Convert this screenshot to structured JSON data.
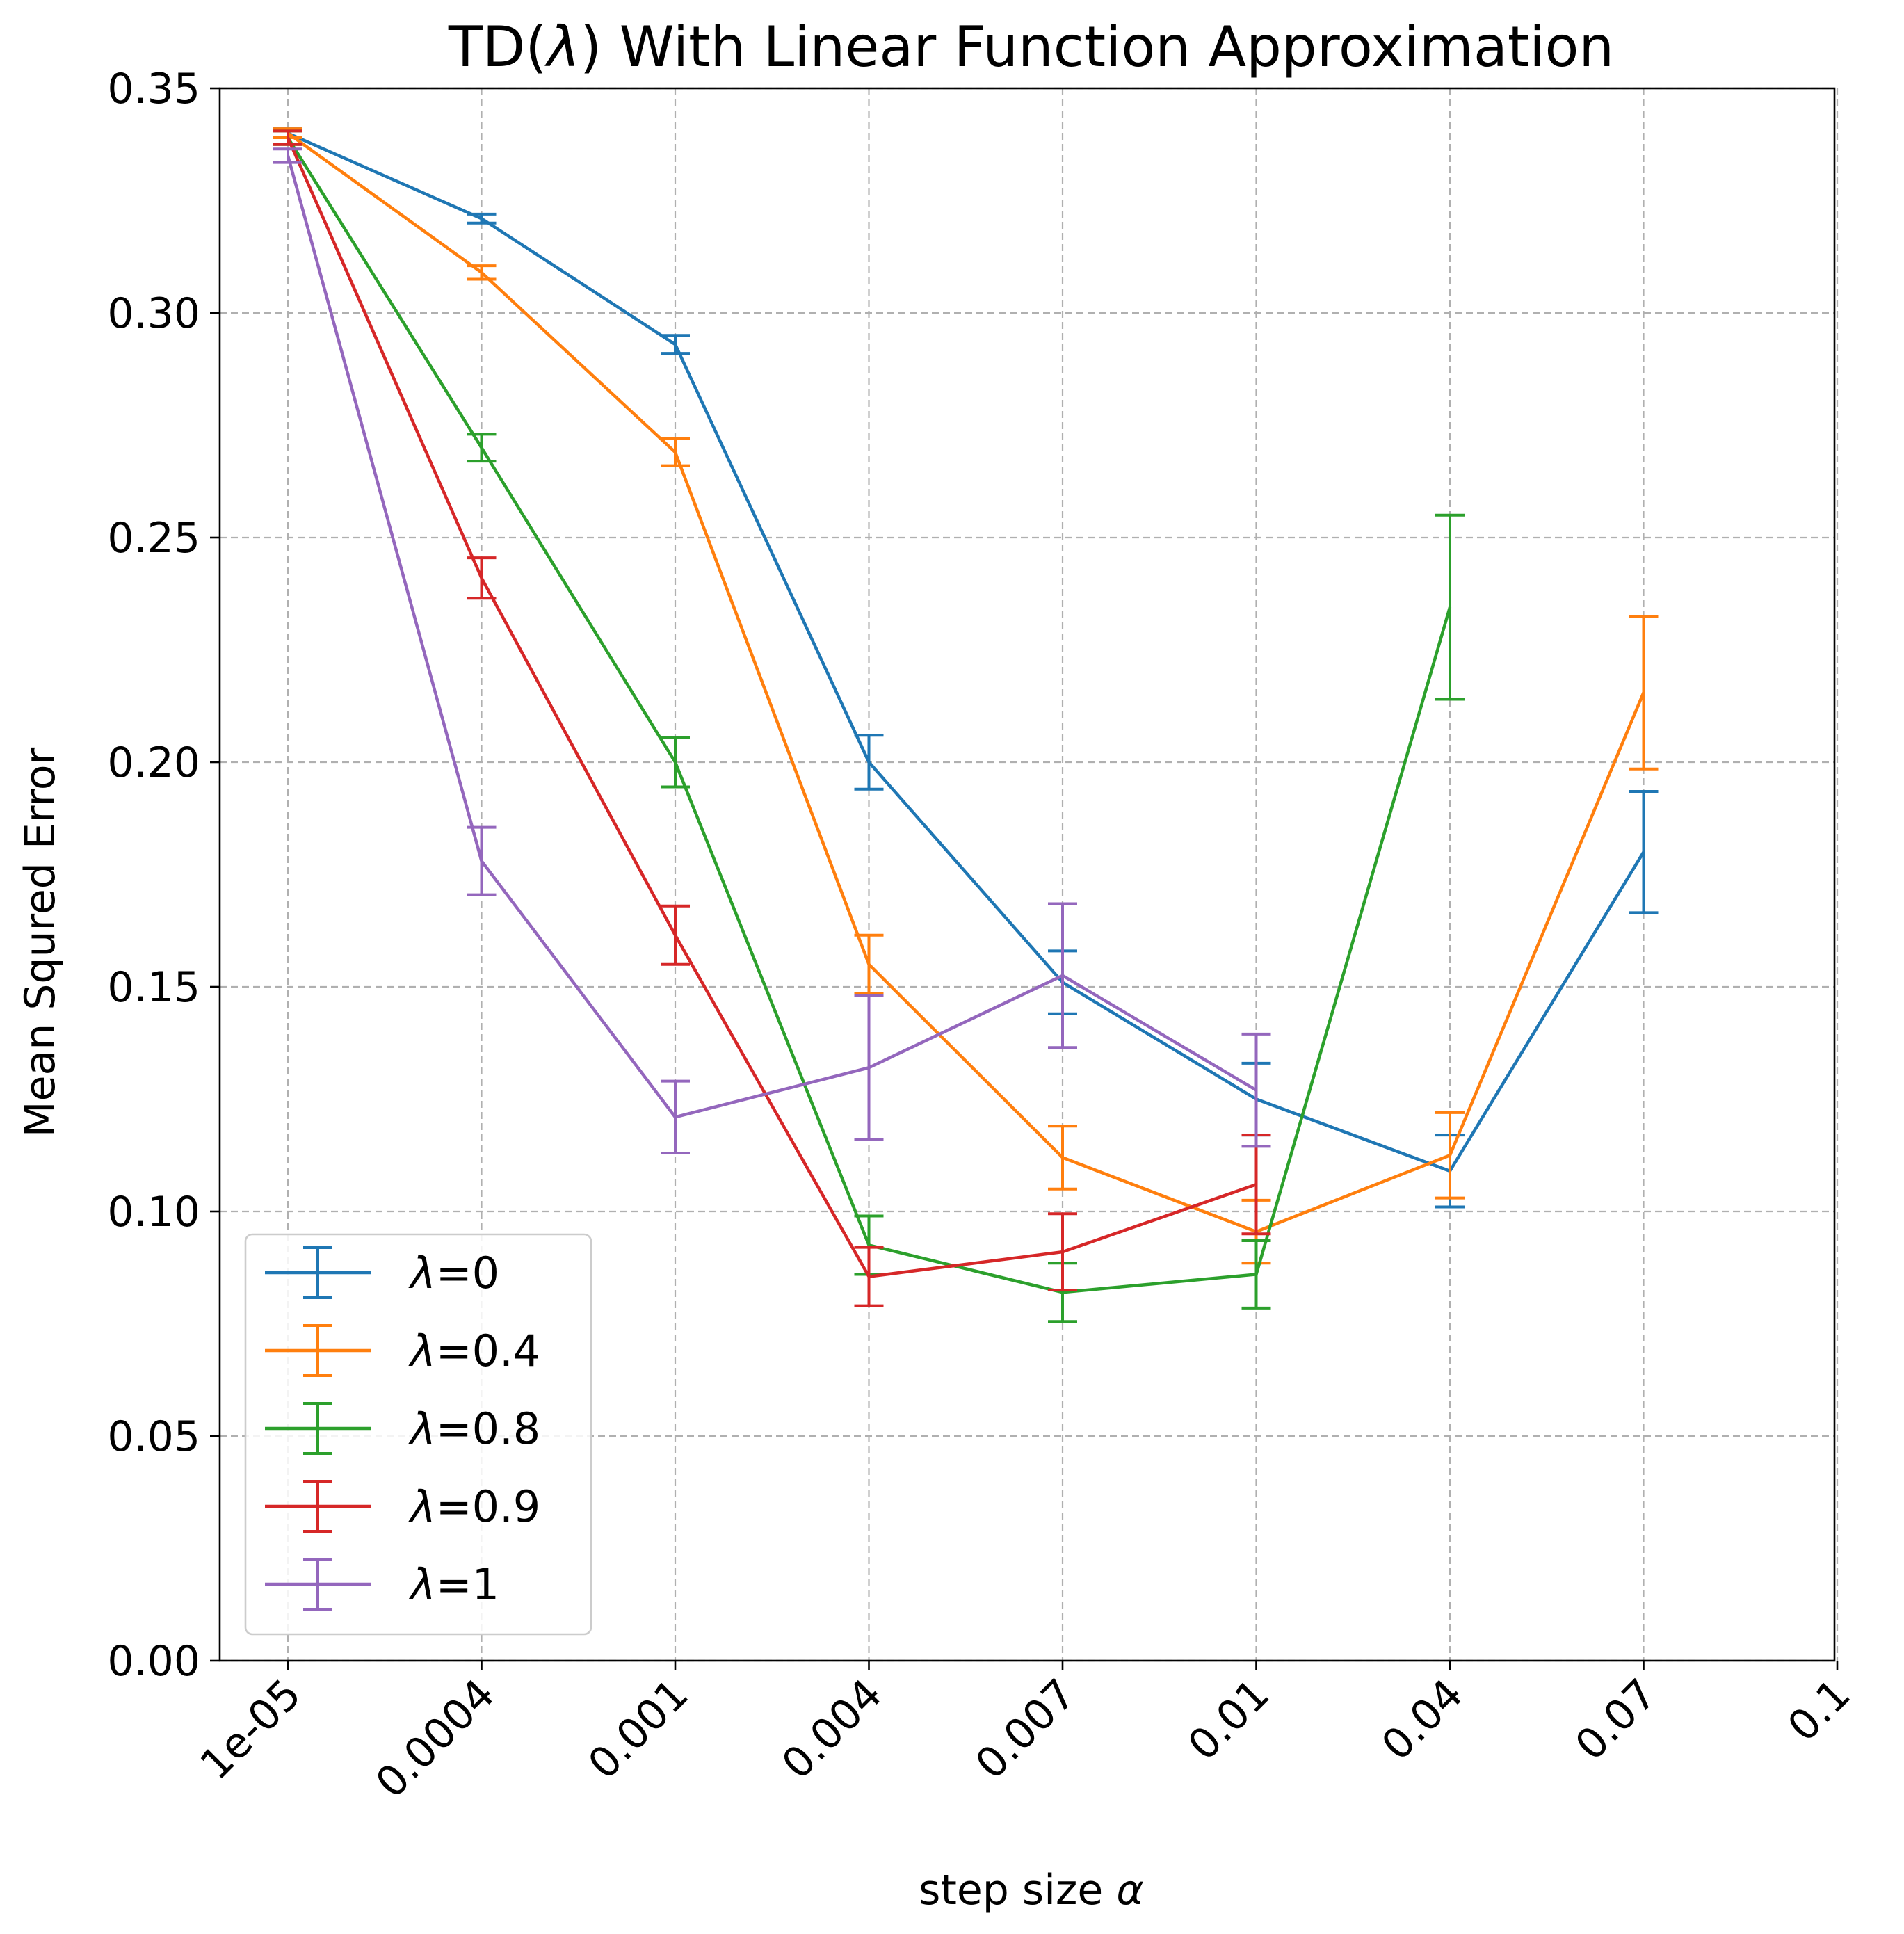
{
  "chart_data": {
    "type": "line",
    "title_prefix": "TD(",
    "title_lambda": "λ",
    "title_suffix": ") With Linear Function Approximation",
    "xlabel_text": "step size ",
    "xlabel_symbol": "α",
    "ylabel": "Mean Squred Error",
    "x_ticks": [
      "1e-05",
      "0.0004",
      "0.001",
      "0.004",
      "0.007",
      "0.01",
      "0.04",
      "0.07",
      "0.1"
    ],
    "y_ticks": [
      "0.00",
      "0.05",
      "0.10",
      "0.15",
      "0.20",
      "0.25",
      "0.30",
      "0.35"
    ],
    "ylim": [
      0,
      0.35
    ],
    "grid": true,
    "legend_placement": "lower-left",
    "series": [
      {
        "name": "λ=0",
        "legend_symbol": "λ",
        "legend_value": "=0",
        "color": "#1f77b4",
        "x": [
          "1e-05",
          "0.0004",
          "0.001",
          "0.004",
          "0.007",
          "0.01",
          "0.04",
          "0.07"
        ],
        "values": [
          0.34,
          0.321,
          0.293,
          0.2,
          0.151,
          0.125,
          0.109,
          0.18
        ],
        "errors": [
          0.001,
          0.001,
          0.002,
          0.006,
          0.007,
          0.008,
          0.008,
          0.0135
        ]
      },
      {
        "name": "λ=0.4",
        "legend_symbol": "λ",
        "legend_value": "=0.4",
        "color": "#ff7f0e",
        "x": [
          "1e-05",
          "0.0004",
          "0.001",
          "0.004",
          "0.007",
          "0.01",
          "0.04",
          "0.07"
        ],
        "values": [
          0.34,
          0.309,
          0.269,
          0.155,
          0.112,
          0.0955,
          0.1125,
          0.2155
        ],
        "errors": [
          0.001,
          0.0015,
          0.003,
          0.0065,
          0.007,
          0.007,
          0.0095,
          0.017
        ]
      },
      {
        "name": "λ=0.8",
        "legend_symbol": "λ",
        "legend_value": "=0.8",
        "color": "#2ca02c",
        "x": [
          "1e-05",
          "0.0004",
          "0.001",
          "0.004",
          "0.007",
          "0.01",
          "0.04"
        ],
        "values": [
          0.339,
          0.27,
          0.2,
          0.0925,
          0.082,
          0.086,
          0.2345
        ],
        "errors": [
          0.0015,
          0.003,
          0.0055,
          0.0065,
          0.0065,
          0.0075,
          0.0205
        ]
      },
      {
        "name": "λ=0.9",
        "legend_symbol": "λ",
        "legend_value": "=0.9",
        "color": "#d62728",
        "x": [
          "1e-05",
          "0.0004",
          "0.001",
          "0.004",
          "0.007",
          "0.01"
        ],
        "values": [
          0.339,
          0.241,
          0.1615,
          0.0855,
          0.091,
          0.106
        ],
        "errors": [
          0.0015,
          0.0045,
          0.0065,
          0.0065,
          0.0085,
          0.011
        ]
      },
      {
        "name": "λ=1",
        "legend_symbol": "λ",
        "legend_value": "=1",
        "color": "#9467bd",
        "x": [
          "1e-05",
          "0.0004",
          "0.001",
          "0.004",
          "0.007",
          "0.01"
        ],
        "values": [
          0.335,
          0.178,
          0.121,
          0.132,
          0.1525,
          0.127
        ],
        "errors": [
          0.0015,
          0.0075,
          0.008,
          0.016,
          0.016,
          0.0125
        ]
      }
    ]
  }
}
